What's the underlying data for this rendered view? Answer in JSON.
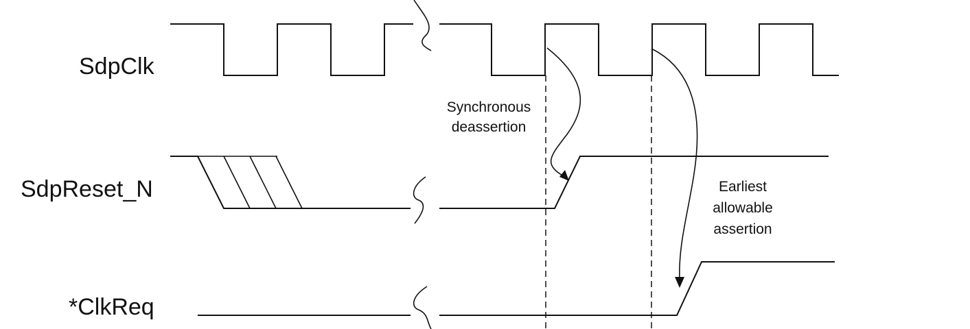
{
  "signals": {
    "clock": "SdpClk",
    "reset": "SdpReset_N",
    "clkreq": "*ClkReq"
  },
  "annotations": {
    "sync_line1": "Synchronous",
    "sync_line2": "deassertion",
    "earliest_line1": "Earliest",
    "earliest_line2": "allowable",
    "earliest_line3": "assertion"
  },
  "colors": {
    "line": "#111111",
    "background": "#ffffff"
  }
}
